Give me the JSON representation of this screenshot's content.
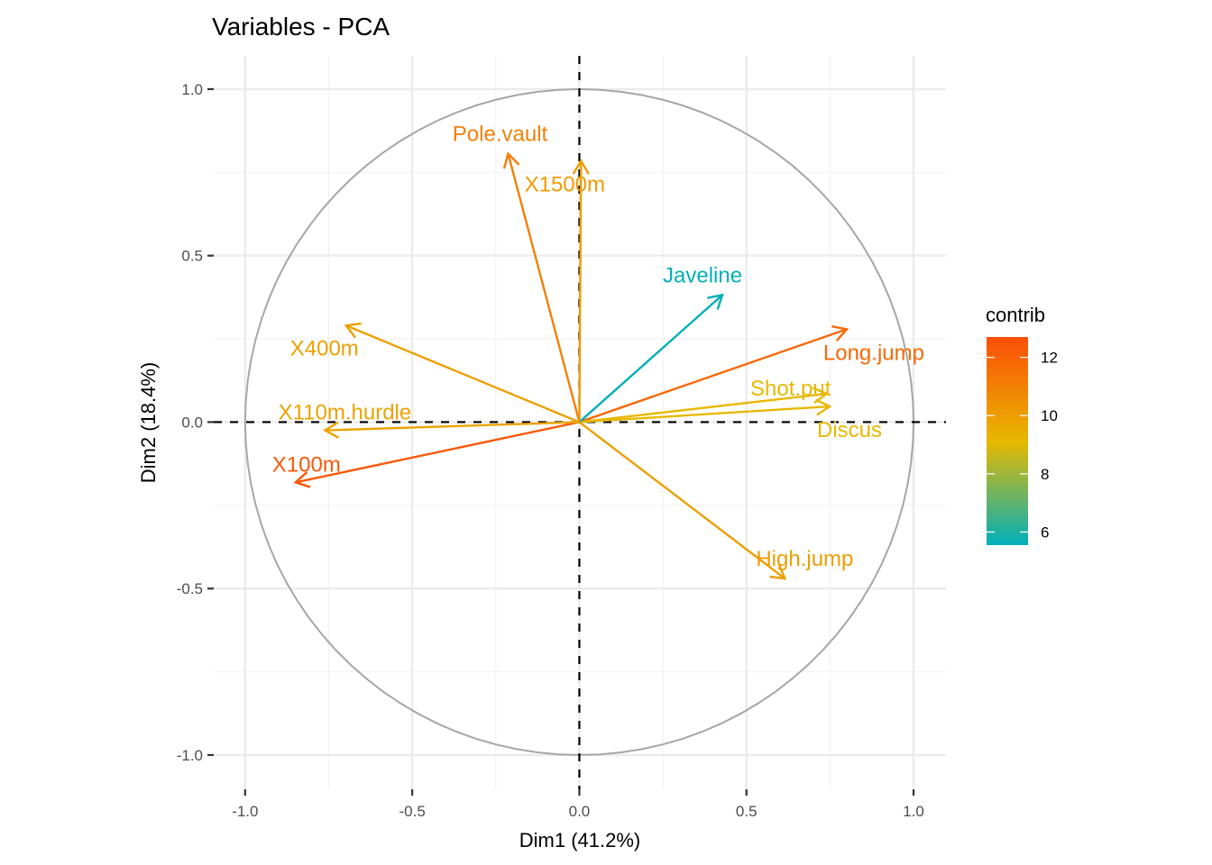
{
  "chart_data": {
    "type": "scatter",
    "subtype": "pca-variable-correlation-circle",
    "title": "Variables - PCA",
    "xlabel": "Dim1 (41.2%)",
    "ylabel": "Dim2 (18.4%)",
    "xlim": [
      -1.094,
      1.097
    ],
    "ylim": [
      -1.103,
      1.1
    ],
    "x_ticks": [
      -1.0,
      -0.5,
      0.0,
      0.5,
      1.0
    ],
    "x_tick_labels": [
      "-1.0",
      "-0.5",
      "0.0",
      "0.5",
      "1.0"
    ],
    "y_ticks": [
      -1.0,
      -0.5,
      0.0,
      0.5,
      1.0
    ],
    "y_tick_labels": [
      "-1.0",
      "-0.5",
      "0.0",
      "0.5",
      "1.0"
    ],
    "minor_grid": [
      -0.75,
      -0.25,
      0.25,
      0.75
    ],
    "grid": true,
    "circle_radius": 1.0,
    "reference_lines": [
      "x=0",
      "y=0"
    ],
    "variables": [
      {
        "name": "X100m",
        "x": -0.849,
        "y": -0.181,
        "contrib": 12.4
      },
      {
        "name": "Long.jump",
        "x": 0.8,
        "y": 0.279,
        "contrib": 11.8
      },
      {
        "name": "Shot.put",
        "x": 0.74,
        "y": 0.085,
        "contrib": 9.1
      },
      {
        "name": "High.jump",
        "x": 0.615,
        "y": -0.47,
        "contrib": 10.0
      },
      {
        "name": "X400m",
        "x": -0.698,
        "y": 0.29,
        "contrib": 9.9
      },
      {
        "name": "X110m.hurdle",
        "x": -0.761,
        "y": -0.025,
        "contrib": 9.8
      },
      {
        "name": "Discus",
        "x": 0.749,
        "y": 0.047,
        "contrib": 9.1
      },
      {
        "name": "Pole.vault",
        "x": -0.213,
        "y": 0.806,
        "contrib": 11.0
      },
      {
        "name": "Javeline",
        "x": 0.428,
        "y": 0.382,
        "contrib": 5.6
      },
      {
        "name": "X1500m",
        "x": 0.005,
        "y": 0.785,
        "contrib": 10.1
      }
    ],
    "legend": {
      "title": "contrib",
      "placement": "right",
      "range": [
        5.55,
        12.7
      ],
      "ticks": [
        12,
        10,
        8,
        6
      ],
      "tick_labels": [
        "12",
        "10",
        "8",
        "6"
      ],
      "gradient_colors": [
        "#00AFBB",
        "#E7B800",
        "#FC4E07"
      ],
      "gradient_midpoint": 9.1
    },
    "colors": {
      "circle": "#A6A6A6",
      "grid_major": "#EBEBEB",
      "grid_minor": "#F2F2F2",
      "reference_line": "#000000"
    }
  }
}
